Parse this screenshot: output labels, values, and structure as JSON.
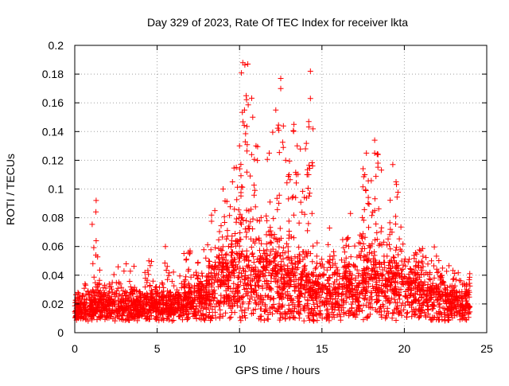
{
  "chart_data": {
    "type": "scatter",
    "title": "Day 329 of 2023, Rate Of TEC Index for receiver lkta",
    "xlabel": "GPS time / hours",
    "ylabel": "ROTI / TECUs",
    "xlim": [
      0,
      25
    ],
    "ylim": [
      0,
      0.2
    ],
    "x_ticks": [
      "0",
      "5",
      "10",
      "15",
      "20",
      "25"
    ],
    "y_ticks": [
      "0",
      "0.02",
      "0.04",
      "0.06",
      "0.08",
      "0.1",
      "0.12",
      "0.14",
      "0.16",
      "0.18",
      "0.2"
    ],
    "grid": true,
    "grid_style": "dotted",
    "marker": "plus",
    "colors": {
      "series": "#ff0000",
      "axes": "#000000",
      "grid": "#a0a0a0"
    },
    "series": [
      {
        "x_range": [
          0,
          24
        ],
        "baseline_roti": [
          [
            0,
            0.015
          ],
          [
            2,
            0.018
          ],
          [
            4,
            0.018
          ],
          [
            6,
            0.02
          ],
          [
            7,
            0.022
          ],
          [
            8,
            0.03
          ],
          [
            9,
            0.045
          ],
          [
            10,
            0.055
          ],
          [
            11,
            0.05
          ],
          [
            12,
            0.045
          ],
          [
            13,
            0.04
          ],
          [
            14,
            0.035
          ],
          [
            15,
            0.03
          ],
          [
            16,
            0.03
          ],
          [
            17,
            0.035
          ],
          [
            18,
            0.04
          ],
          [
            19,
            0.04
          ],
          [
            20,
            0.035
          ],
          [
            22,
            0.025
          ],
          [
            24,
            0.02
          ]
        ],
        "peaks": [
          [
            1.3,
            0.092
          ],
          [
            1.3,
            0.064
          ],
          [
            10.2,
            0.188
          ],
          [
            10.5,
            0.187
          ],
          [
            10.4,
            0.165
          ],
          [
            10.3,
            0.155
          ],
          [
            10.8,
            0.15
          ],
          [
            10.0,
            0.13
          ],
          [
            9.8,
            0.115
          ],
          [
            11.0,
            0.13
          ],
          [
            12.5,
            0.177
          ],
          [
            12.5,
            0.17
          ],
          [
            12.2,
            0.155
          ],
          [
            11.8,
            0.125
          ],
          [
            12.8,
            0.12
          ],
          [
            13.5,
            0.13
          ],
          [
            13.3,
            0.145
          ],
          [
            13.0,
            0.11
          ],
          [
            14.3,
            0.182
          ],
          [
            14.3,
            0.163
          ],
          [
            14.2,
            0.147
          ],
          [
            14.0,
            0.128
          ],
          [
            14.1,
            0.11
          ],
          [
            9.0,
            0.1
          ],
          [
            8.5,
            0.085
          ],
          [
            18.2,
            0.134
          ],
          [
            18.2,
            0.125
          ],
          [
            17.7,
            0.125
          ],
          [
            18.4,
            0.118
          ],
          [
            17.6,
            0.11
          ],
          [
            19.3,
            0.117
          ],
          [
            19.5,
            0.105
          ],
          [
            17.8,
            0.09
          ],
          [
            16.5,
            0.065
          ],
          [
            5.5,
            0.06
          ],
          [
            7.0,
            0.057
          ],
          [
            21.0,
            0.057
          ],
          [
            4.5,
            0.05
          ]
        ]
      }
    ]
  }
}
